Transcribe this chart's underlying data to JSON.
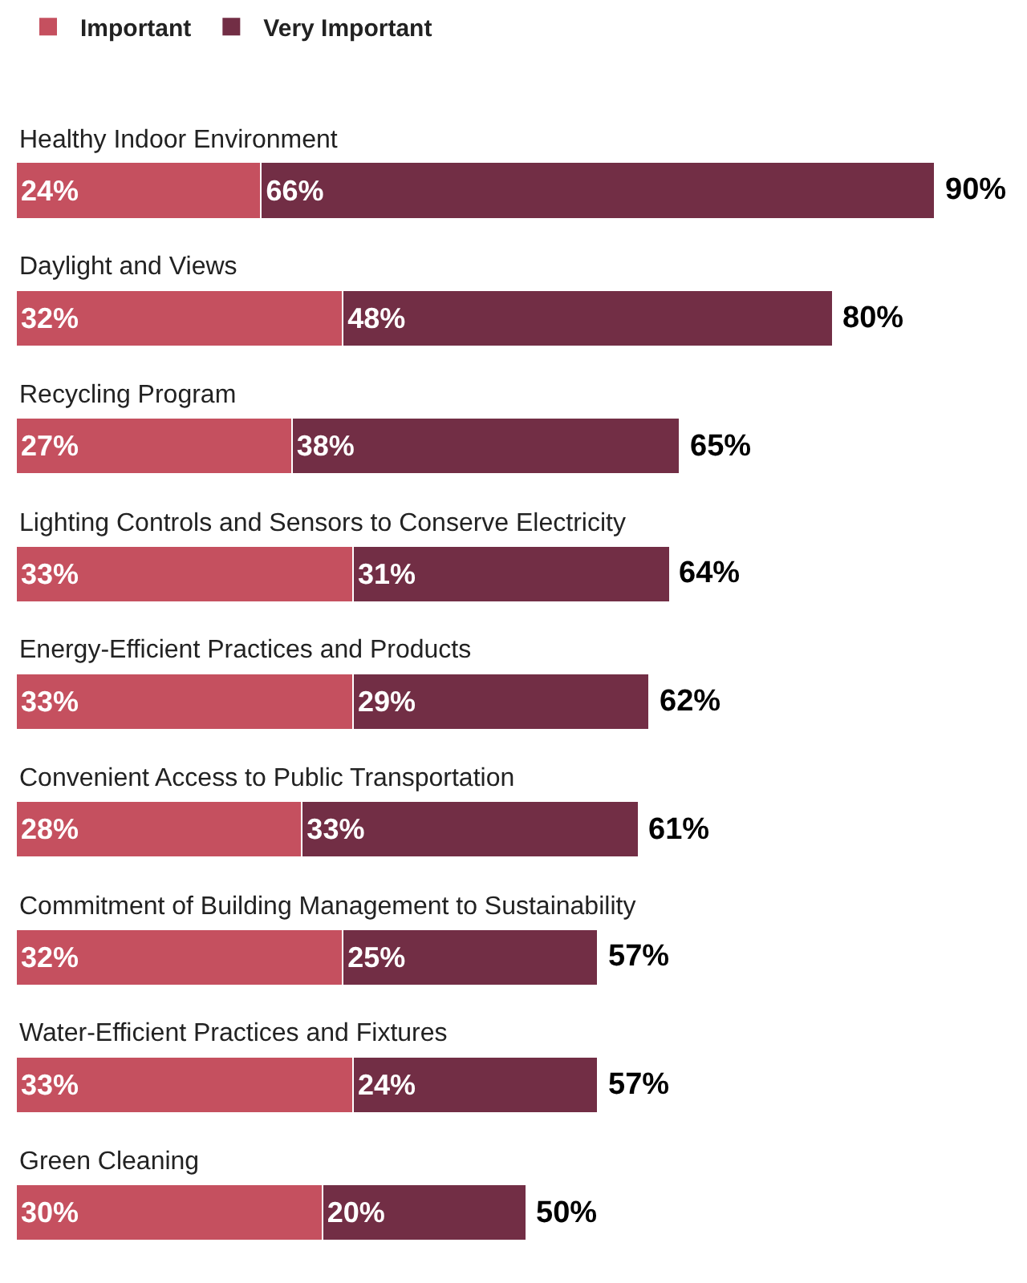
{
  "chart_data": {
    "type": "bar",
    "orientation": "horizontal",
    "stacked": true,
    "legend": "top left",
    "tick_labels": false,
    "categories": [
      "Healthy Indoor Environment",
      "Daylight and Views",
      "Recycling Program",
      "Lighting Controls and Sensors to Conserve Electricity",
      "Energy-Efficient Practices and Products",
      "Convenient Access to Public Transportation",
      "Commitment of Building Management to Sustainability",
      "Water-Efficient Practices and Fixtures",
      "Green Cleaning"
    ],
    "series": [
      {
        "name": "Important",
        "color": "#c5505f",
        "values": [
          24,
          32,
          27,
          33,
          33,
          28,
          32,
          33,
          30
        ],
        "value_labels": [
          "24%",
          "32%",
          "27%",
          "33%",
          "33%",
          "28%",
          "32%",
          "33%",
          "30%"
        ]
      },
      {
        "name": "Very Important",
        "color": "#722e45",
        "values": [
          66,
          48,
          38,
          31,
          29,
          33,
          25,
          24,
          20
        ],
        "value_labels": [
          "66%",
          "48%",
          "38%",
          "31%",
          "29%",
          "33%",
          "25%",
          "24%",
          "20%"
        ]
      }
    ],
    "totals": [
      "90%",
      "80%",
      "65%",
      "64%",
      "62%",
      "61%",
      "57%",
      "57%",
      "50%"
    ]
  }
}
